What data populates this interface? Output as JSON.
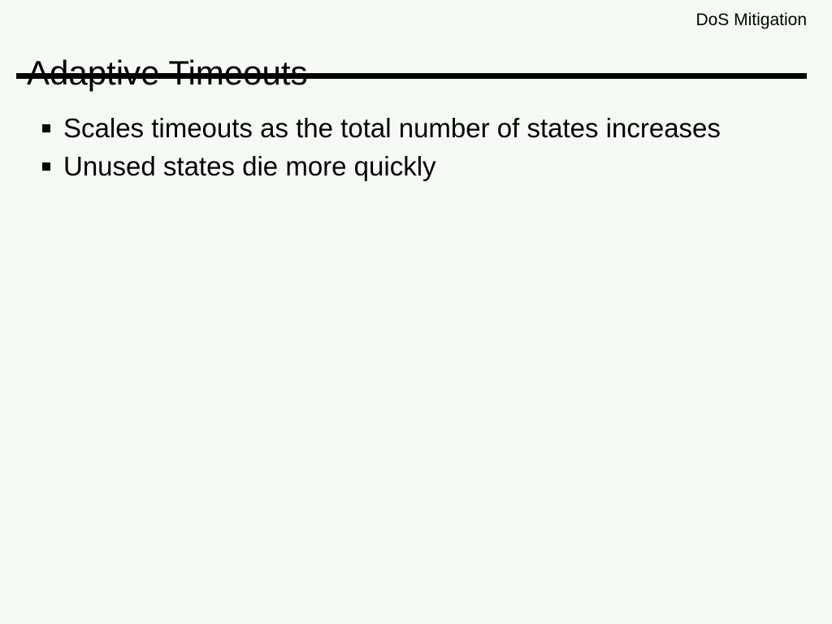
{
  "slide": {
    "header_label": "DoS Mitigation",
    "title": "Adaptive Timeouts",
    "bullets": [
      "Scales timeouts as the total number of states increases",
      "Unused states die more quickly"
    ],
    "colors": {
      "background": "#f5faf5",
      "text": "#000000",
      "rule": "#000000"
    }
  }
}
